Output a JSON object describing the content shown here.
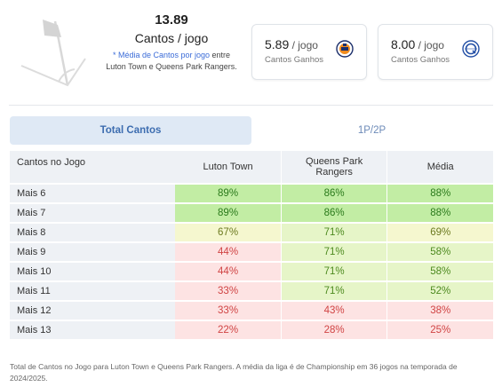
{
  "summary": {
    "average_value": "13.89",
    "unit_label": "Cantos / jogo",
    "note_highlight": "* Média de Cantos por jogo",
    "note_rest": " entre",
    "note_line2": "Luton Town e Queens Park Rangers."
  },
  "team_cards": [
    {
      "value": "5.89",
      "unit": " / jogo",
      "label": "Cantos Ganhos",
      "crest_icon": "luton-town-crest-icon"
    },
    {
      "value": "8.00",
      "unit": " / jogo",
      "label": "Cantos Ganhos",
      "crest_icon": "qpr-crest-icon"
    }
  ],
  "tabs": [
    {
      "label": "Total Cantos",
      "active": true
    },
    {
      "label": "1P/2P",
      "active": false
    }
  ],
  "table": {
    "headers": {
      "first": "Cantos no Jogo",
      "team1": "Luton Town",
      "team2_line1": "Queens Park",
      "team2_line2": "Rangers",
      "avg": "Média"
    },
    "rows": [
      {
        "label": "Mais 6",
        "team1": "89%",
        "team2": "86%",
        "avg": "88%"
      },
      {
        "label": "Mais 7",
        "team1": "89%",
        "team2": "86%",
        "avg": "88%"
      },
      {
        "label": "Mais 8",
        "team1": "67%",
        "team2": "71%",
        "avg": "69%"
      },
      {
        "label": "Mais 9",
        "team1": "44%",
        "team2": "71%",
        "avg": "58%"
      },
      {
        "label": "Mais 10",
        "team1": "44%",
        "team2": "71%",
        "avg": "58%"
      },
      {
        "label": "Mais 11",
        "team1": "33%",
        "team2": "71%",
        "avg": "52%"
      },
      {
        "label": "Mais 12",
        "team1": "33%",
        "team2": "43%",
        "avg": "38%"
      },
      {
        "label": "Mais 13",
        "team1": "22%",
        "team2": "28%",
        "avg": "25%"
      }
    ]
  },
  "footnote": "Total de Cantos no Jogo para Luton Town e Queens Park Rangers. A média da liga é de Championship em 36 jogos na temporada de 2024/2025.",
  "colors": {
    "high": "#c2eda4",
    "mid": "#f5f7cf",
    "low": "#fde3e3",
    "tab_active_bg": "#dfe9f5",
    "accent": "#3b6cd8"
  }
}
